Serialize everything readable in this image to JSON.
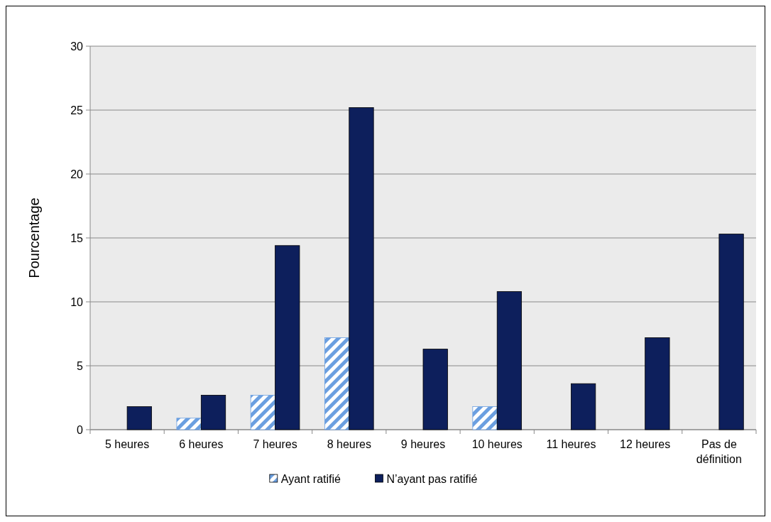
{
  "chart_data": {
    "type": "bar",
    "ylabel": "Pourcentage",
    "categories": [
      "5 heures",
      "6 heures",
      "7 heures",
      "8 heures",
      "9 heures",
      "10 heures",
      "11 heures",
      "12 heures",
      "Pas de définition"
    ],
    "series": [
      {
        "name": "Ayant ratifié",
        "color": "#6b9fe0",
        "values": [
          0,
          0.9,
          2.7,
          7.2,
          0,
          1.8,
          0,
          0,
          0
        ]
      },
      {
        "name": "N’ayant pas ratifié",
        "color": "#0d1f5c",
        "values": [
          1.8,
          2.7,
          14.4,
          25.2,
          6.3,
          10.8,
          3.6,
          7.2,
          15.3
        ]
      }
    ],
    "ylim": [
      0,
      30
    ],
    "yticks": [
      0,
      5,
      10,
      15,
      20,
      25,
      30
    ],
    "grid": "y",
    "legend": "bottom"
  }
}
